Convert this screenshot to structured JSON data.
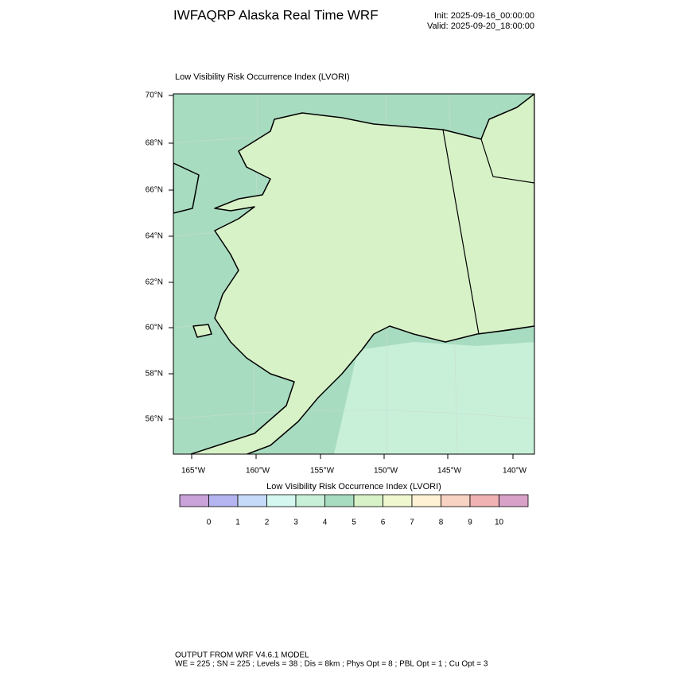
{
  "header": {
    "title": "IWFAQRP Alaska Real Time WRF",
    "init": "Init: 2025-09-16_00:00:00",
    "valid": "Valid: 2025-09-20_18:00:00"
  },
  "map": {
    "title": "Low Visibility Risk Occurrence Index   (LVORI)",
    "lat_labels": [
      "70°N",
      "68°N",
      "66°N",
      "64°N",
      "62°N",
      "60°N",
      "58°N",
      "56°N"
    ],
    "lon_labels": [
      "165°W",
      "160°W",
      "155°W",
      "150°W",
      "145°W",
      "140°W"
    ]
  },
  "colorbar": {
    "label": "Low Visibility Risk Occurrence Index  (LVORI)",
    "colors": [
      "#c8a2d8",
      "#b4b4f0",
      "#c4daf8",
      "#d4f8f0",
      "#c8f0d8",
      "#a8dcc0",
      "#d8f2c8",
      "#f0f8d0",
      "#fff2d4",
      "#f8d2c2",
      "#f0b2b2",
      "#d8a2c8"
    ],
    "ticks": [
      0,
      1,
      2,
      3,
      4,
      5,
      6,
      7,
      8,
      9,
      10
    ]
  },
  "footer": {
    "line1": "OUTPUT FROM WRF V4.6.1 MODEL",
    "line2": "WE = 225 ; SN = 225 ; Levels = 38 ; Dis = 8km ; Phys Opt = 8 ; PBL Opt = 1 ; Cu Opt = 3"
  }
}
